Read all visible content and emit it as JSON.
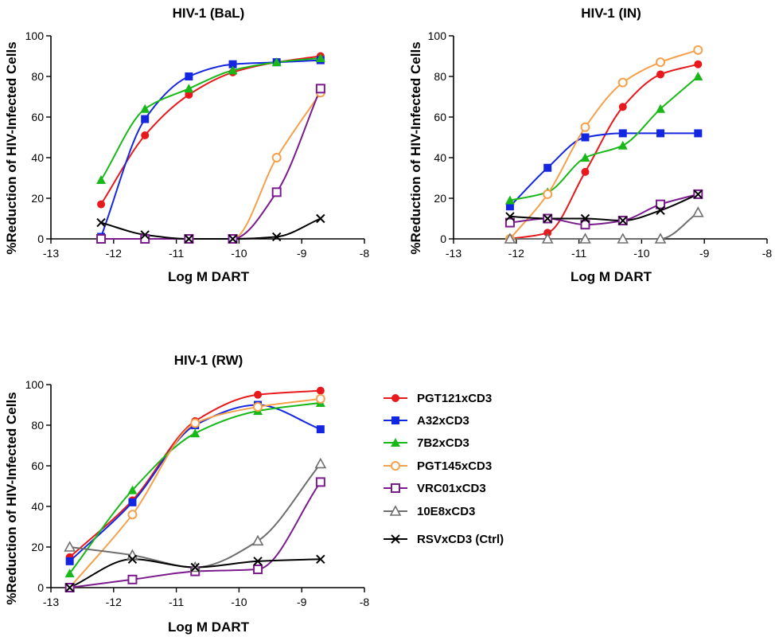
{
  "series_styles": [
    {
      "name": "PGT121xCD3",
      "color": "#e8191c",
      "marker": "circle-filled"
    },
    {
      "name": "A32xCD3",
      "color": "#1427e0",
      "marker": "square-filled"
    },
    {
      "name": "7B2xCD3",
      "color": "#19b819",
      "marker": "triangle-filled"
    },
    {
      "name": "PGT145xCD3",
      "color": "#f5a04a",
      "marker": "circle-open"
    },
    {
      "name": "VRC01xCD3",
      "color": "#7a1a8c",
      "marker": "square-open"
    },
    {
      "name": "10E8xCD3",
      "color": "#6e6e6e",
      "marker": "triangle-open"
    },
    {
      "name": "RSVxCD3 (Ctrl)",
      "color": "#000000",
      "marker": "x"
    }
  ],
  "chart_data": [
    {
      "type": "line",
      "title": "HIV-1  (BaL)",
      "xlabel": "Log M DART",
      "ylabel": "%Reduction of HIV-Infected Cells",
      "xlim": [
        -13,
        -8
      ],
      "ylim": [
        0,
        100
      ],
      "xticks": [
        "-13",
        "-12",
        "-11",
        "-10",
        "-9",
        "-8"
      ],
      "yticks": [
        "0",
        "20",
        "40",
        "60",
        "80",
        "100"
      ],
      "grid": false,
      "series": [
        {
          "name": "PGT121xCD3",
          "x": [
            -12.2,
            -11.5,
            -10.8,
            -10.1,
            -9.4,
            -8.7
          ],
          "y": [
            17,
            51,
            71,
            82,
            87,
            90
          ]
        },
        {
          "name": "A32xCD3",
          "x": [
            -12.2,
            -11.5,
            -10.8,
            -10.1,
            -9.4,
            -8.7
          ],
          "y": [
            1,
            59,
            80,
            86,
            87,
            88
          ]
        },
        {
          "name": "7B2xCD3",
          "x": [
            -12.2,
            -11.5,
            -10.8,
            -10.1,
            -9.4,
            -8.7
          ],
          "y": [
            29,
            64,
            74,
            83,
            87,
            89
          ]
        },
        {
          "name": "PGT145xCD3",
          "x": [
            -12.2,
            -11.5,
            -10.8,
            -10.1,
            -9.4,
            -8.7
          ],
          "y": [
            0,
            0,
            0,
            0,
            40,
            72
          ]
        },
        {
          "name": "VRC01xCD3",
          "x": [
            -12.2,
            -11.5,
            -10.8,
            -10.1,
            -9.4,
            -8.7
          ],
          "y": [
            0,
            0,
            0,
            0,
            23,
            74
          ]
        },
        {
          "name": "RSVxCD3 (Ctrl)",
          "x": [
            -12.2,
            -11.5,
            -10.8,
            -10.1,
            -9.4,
            -8.7
          ],
          "y": [
            8,
            2,
            0,
            0,
            1,
            10
          ]
        }
      ]
    },
    {
      "type": "line",
      "title": "HIV-1  (IN)",
      "xlabel": "Log M DART",
      "ylabel": "%Reduction of HIV-Infected Cells",
      "xlim": [
        -13,
        -8
      ],
      "ylim": [
        0,
        100
      ],
      "xticks": [
        "-13",
        "-12",
        "-11",
        "-10",
        "-9",
        "-8"
      ],
      "yticks": [
        "0",
        "20",
        "40",
        "60",
        "80",
        "100"
      ],
      "grid": false,
      "series": [
        {
          "name": "PGT121xCD3",
          "x": [
            -12.1,
            -11.5,
            -10.9,
            -10.3,
            -9.7,
            -9.1
          ],
          "y": [
            0,
            3,
            33,
            65,
            81,
            86
          ]
        },
        {
          "name": "A32xCD3",
          "x": [
            -12.1,
            -11.5,
            -10.9,
            -10.3,
            -9.7,
            -9.1
          ],
          "y": [
            16,
            35,
            50,
            52,
            52,
            52
          ]
        },
        {
          "name": "7B2xCD3",
          "x": [
            -12.1,
            -11.5,
            -10.9,
            -10.3,
            -9.7,
            -9.1
          ],
          "y": [
            19,
            23,
            40,
            46,
            64,
            80
          ]
        },
        {
          "name": "PGT145xCD3",
          "x": [
            -12.1,
            -11.5,
            -10.9,
            -10.3,
            -9.7,
            -9.1
          ],
          "y": [
            0,
            22,
            55,
            77,
            87,
            93
          ]
        },
        {
          "name": "VRC01xCD3",
          "x": [
            -12.1,
            -11.5,
            -10.9,
            -10.3,
            -9.7,
            -9.1
          ],
          "y": [
            8,
            10,
            7,
            9,
            17,
            22
          ]
        },
        {
          "name": "10E8xCD3",
          "x": [
            -12.1,
            -11.5,
            -10.9,
            -10.3,
            -9.7,
            -9.1
          ],
          "y": [
            0,
            0,
            0,
            0,
            0,
            13
          ]
        },
        {
          "name": "RSVxCD3 (Ctrl)",
          "x": [
            -12.1,
            -11.5,
            -10.9,
            -10.3,
            -9.7,
            -9.1
          ],
          "y": [
            11,
            10,
            10,
            9,
            14,
            22
          ]
        }
      ]
    },
    {
      "type": "line",
      "title": "HIV-1  (RW)",
      "xlabel": "Log M DART",
      "ylabel": "%Reduction of HIV-Infected Cells",
      "xlim": [
        -13,
        -8
      ],
      "ylim": [
        0,
        100
      ],
      "xticks": [
        "-13",
        "-12",
        "-11",
        "-10",
        "-9",
        "-8"
      ],
      "yticks": [
        "0",
        "20",
        "40",
        "60",
        "80",
        "100"
      ],
      "grid": false,
      "series": [
        {
          "name": "PGT121xCD3",
          "x": [
            -12.7,
            -11.7,
            -10.7,
            -9.7,
            -8.7
          ],
          "y": [
            15,
            43,
            82,
            95,
            97
          ]
        },
        {
          "name": "A32xCD3",
          "x": [
            -12.7,
            -11.7,
            -10.7,
            -9.7,
            -8.7
          ],
          "y": [
            13,
            42,
            80,
            90,
            78
          ]
        },
        {
          "name": "7B2xCD3",
          "x": [
            -12.7,
            -11.7,
            -10.7,
            -9.7,
            -8.7
          ],
          "y": [
            7,
            48,
            76,
            87,
            91
          ]
        },
        {
          "name": "PGT145xCD3",
          "x": [
            -12.7,
            -11.7,
            -10.7,
            -9.7,
            -8.7
          ],
          "y": [
            0,
            36,
            81,
            89,
            93
          ]
        },
        {
          "name": "VRC01xCD3",
          "x": [
            -12.7,
            -11.7,
            -10.7,
            -9.7,
            -8.7
          ],
          "y": [
            0,
            4,
            8,
            9,
            52
          ]
        },
        {
          "name": "10E8xCD3",
          "x": [
            -12.7,
            -11.7,
            -10.7,
            -9.7,
            -8.7
          ],
          "y": [
            20,
            16,
            10,
            23,
            61
          ]
        },
        {
          "name": "RSVxCD3 (Ctrl)",
          "x": [
            -12.7,
            -11.7,
            -10.7,
            -9.7,
            -8.7
          ],
          "y": [
            0,
            14,
            10,
            13,
            14
          ]
        }
      ]
    }
  ]
}
